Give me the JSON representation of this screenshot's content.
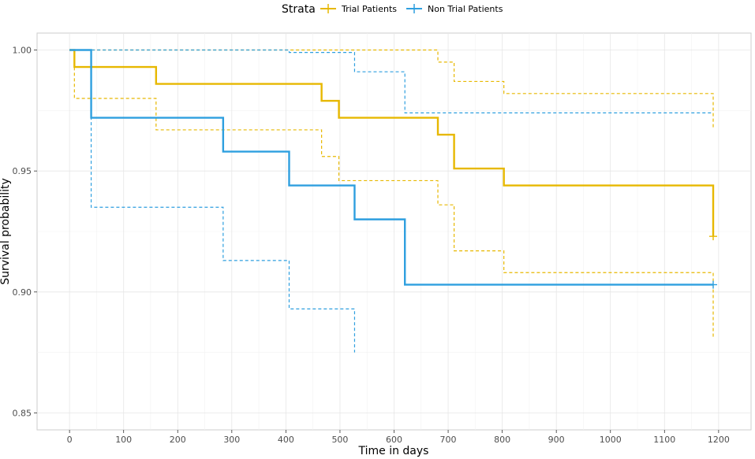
{
  "chart_data": {
    "type": "line",
    "subtype": "kaplan-meier step plot with confidence bands",
    "xlabel": "Time in days",
    "ylabel": "Survival probability",
    "xlim": [
      -60,
      1260
    ],
    "ylim": [
      0.843,
      1.007
    ],
    "x_ticks": [
      0,
      100,
      200,
      300,
      400,
      500,
      600,
      700,
      800,
      900,
      1000,
      1100,
      1200
    ],
    "y_ticks": [
      0.85,
      0.9,
      0.95,
      1.0
    ],
    "y_tick_labels": [
      "0.85",
      "0.90",
      "0.95",
      "1.00"
    ],
    "grid": true,
    "legend": {
      "title": "Strata",
      "position": "top"
    },
    "series": [
      {
        "name": "Trial Patients",
        "color": "#E7B800",
        "survival": [
          [
            0,
            1.0
          ],
          [
            9,
            0.993
          ],
          [
            160,
            0.986
          ],
          [
            466,
            0.979
          ],
          [
            498,
            0.972
          ],
          [
            681,
            0.965
          ],
          [
            711,
            0.951
          ],
          [
            803,
            0.944
          ],
          [
            1190,
            0.923
          ]
        ],
        "upper": [
          [
            0,
            1.0
          ],
          [
            681,
            0.995
          ],
          [
            711,
            0.987
          ],
          [
            803,
            0.982
          ],
          [
            1190,
            0.968
          ]
        ],
        "lower": [
          [
            0,
            1.0
          ],
          [
            9,
            0.98
          ],
          [
            160,
            0.967
          ],
          [
            466,
            0.956
          ],
          [
            498,
            0.946
          ],
          [
            681,
            0.936
          ],
          [
            711,
            0.917
          ],
          [
            803,
            0.908
          ],
          [
            1190,
            0.881
          ]
        ],
        "censor_marks": [
          [
            1190,
            0.923
          ]
        ]
      },
      {
        "name": "Non Trial Patients",
        "color": "#2E9FDF",
        "survival": [
          [
            0,
            1.0
          ],
          [
            40,
            0.972
          ],
          [
            284,
            0.958
          ],
          [
            406,
            0.944
          ],
          [
            527,
            0.93
          ],
          [
            620,
            0.903
          ],
          [
            1190,
            0.903
          ]
        ],
        "upper": [
          [
            0,
            1.0
          ],
          [
            406,
            0.999
          ],
          [
            527,
            0.991
          ],
          [
            620,
            0.974
          ],
          [
            1190,
            0.974
          ]
        ],
        "lower": [
          [
            0,
            1.0
          ],
          [
            40,
            0.935
          ],
          [
            284,
            0.913
          ],
          [
            406,
            0.893
          ],
          [
            527,
            0.875
          ]
        ],
        "censor_marks": [
          [
            1190,
            0.903
          ]
        ]
      }
    ]
  }
}
